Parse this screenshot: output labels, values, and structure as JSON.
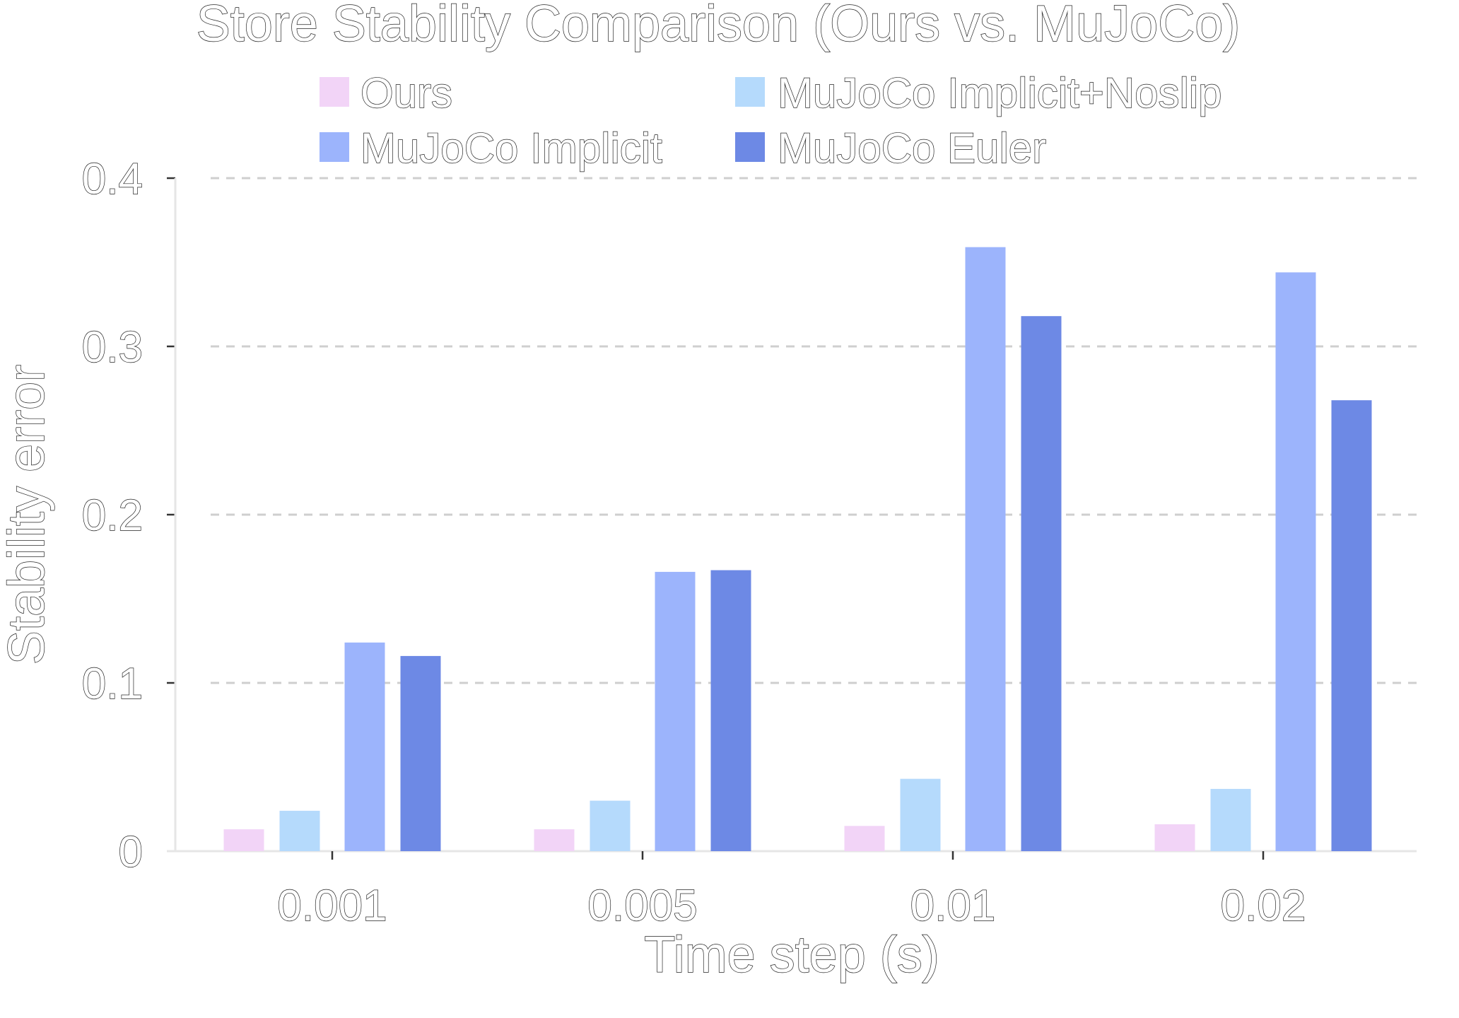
{
  "chart_data": {
    "type": "bar",
    "title": "Store Stability Comparison (Ours vs. MuJoCo)",
    "xlabel": "Time step (s)",
    "ylabel": "Stability error",
    "categories": [
      "0.001",
      "0.005",
      "0.01",
      "0.02"
    ],
    "yticks": [
      "0",
      "0.1",
      "0.2",
      "0.3",
      "0.4"
    ],
    "ylim": [
      0,
      0.4
    ],
    "grid": "horizontal dashed",
    "legend_position": "top",
    "series": [
      {
        "name": "Ours",
        "color": "#f2d4f7",
        "values": [
          0.013,
          0.013,
          0.015,
          0.016
        ]
      },
      {
        "name": "MuJoCo Implicit+Noslip",
        "color": "#b5dafc",
        "values": [
          0.024,
          0.03,
          0.043,
          0.037
        ]
      },
      {
        "name": "MuJoCo Implicit",
        "color": "#9cb4fc",
        "values": [
          0.124,
          0.166,
          0.359,
          0.344
        ]
      },
      {
        "name": "MuJoCo Euler",
        "color": "#6d89e5",
        "values": [
          0.116,
          0.167,
          0.318,
          0.268
        ]
      }
    ]
  }
}
